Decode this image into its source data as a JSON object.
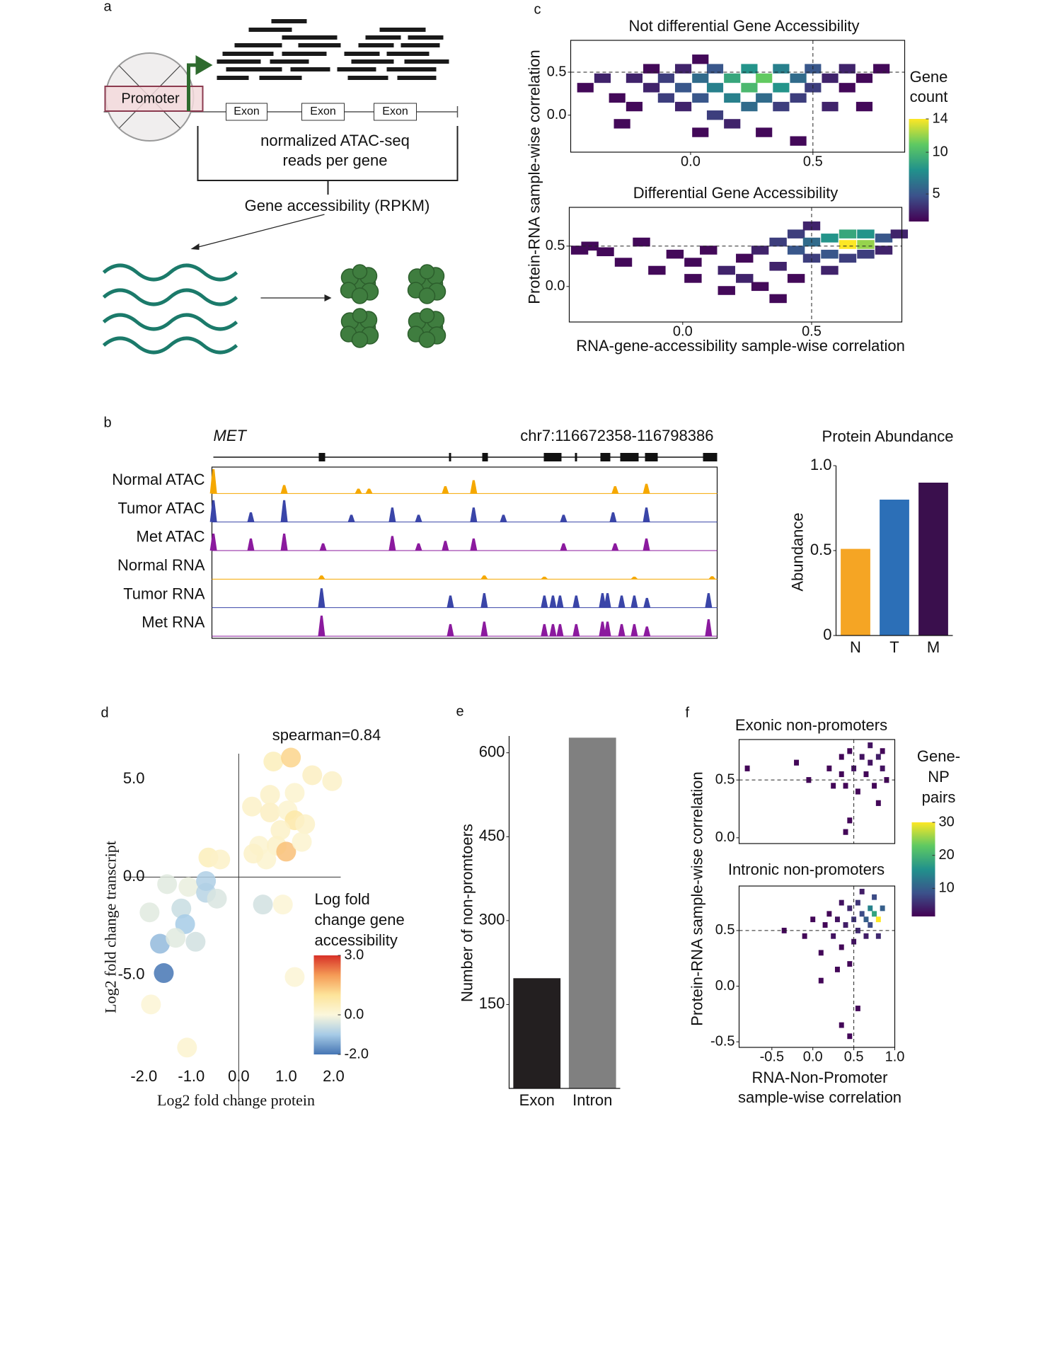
{
  "panel_labels": [
    "a",
    "b",
    "c",
    "d",
    "e",
    "f"
  ],
  "diagram_a": {
    "promoter": "Promoter",
    "exons": [
      "Exon",
      "Exon",
      "Exon"
    ],
    "reads_label": [
      "normalized ATAC-seq",
      "reads per gene"
    ],
    "accessibility": "Gene accessibility (RPKM)"
  },
  "chart_data": [
    {
      "type": "heatmap",
      "title": "Not differential Gene Accessibility",
      "y_label": "Protein-RNA sample-wise correlation",
      "colorbar_title": [
        "Gene",
        "count"
      ],
      "x": [
        -0.43,
        -0.36,
        -0.3,
        -0.23,
        -0.23,
        -0.16,
        -0.16,
        -0.1,
        -0.1,
        -0.03,
        -0.03,
        -0.03,
        0.04,
        0.04,
        0.04,
        0.1,
        0.1,
        0.1,
        0.17,
        0.17,
        0.17,
        0.24,
        0.24,
        0.24,
        0.3,
        0.3,
        0.3,
        0.37,
        0.37,
        0.37,
        0.44,
        0.44,
        0.44,
        0.5,
        0.5,
        0.57,
        0.57,
        0.64,
        0.64,
        0.71,
        0.71,
        0.78,
        -0.28,
        0.04
      ],
      "y": [
        0.32,
        0.43,
        0.2,
        0.1,
        0.43,
        0.32,
        0.54,
        0.2,
        0.43,
        0.54,
        0.32,
        0.1,
        0.43,
        0.2,
        0.65,
        0.32,
        0.54,
        0.0,
        0.43,
        0.2,
        -0.1,
        0.32,
        0.54,
        0.1,
        0.43,
        0.2,
        -0.2,
        0.54,
        0.32,
        0.1,
        0.43,
        0.2,
        -0.3,
        0.32,
        0.54,
        0.43,
        0.1,
        0.32,
        0.54,
        0.43,
        0.1,
        0.54,
        -0.1,
        -0.2
      ],
      "values": [
        2,
        3,
        2,
        2,
        3,
        3,
        2,
        4,
        4,
        3,
        5,
        3,
        6,
        5,
        2,
        7,
        5,
        4,
        9,
        7,
        3,
        10,
        8,
        6,
        11,
        6,
        2,
        7,
        8,
        4,
        6,
        4,
        2,
        4,
        5,
        3,
        3,
        2,
        3,
        2,
        2,
        2,
        2,
        2
      ],
      "bin_size": [
        0.067,
        0.11
      ],
      "xlim": [
        -0.49,
        0.875
      ],
      "ylim": [
        -0.43,
        0.87
      ],
      "xticks": [
        {
          "value": 0,
          "label": "0.0"
        },
        0.5
      ],
      "yticks": [
        {
          "value": 0,
          "label": "0.0"
        },
        0.5
      ],
      "ref_lines": {
        "x": 0.5,
        "y": 0.5
      },
      "clim": [
        1.7,
        14
      ],
      "cticks": [
        5,
        10,
        14
      ],
      "colorscale": [
        "#440154",
        "#3b528b",
        "#21918c",
        "#5ec962",
        "#fde725"
      ]
    },
    {
      "type": "heatmap",
      "title": "Differential Gene Accessibility",
      "x_label": "RNA-gene-accessibility sample-wise correlation",
      "x": [
        -0.36,
        -0.3,
        -0.23,
        -0.16,
        -0.1,
        -0.03,
        0.04,
        0.04,
        0.1,
        0.17,
        0.17,
        0.24,
        0.24,
        0.3,
        0.3,
        0.37,
        0.37,
        0.37,
        0.44,
        0.44,
        0.44,
        0.5,
        0.5,
        0.5,
        0.57,
        0.57,
        0.57,
        0.64,
        0.64,
        0.64,
        0.71,
        0.71,
        0.71,
        0.78,
        0.78,
        0.84,
        -0.4
      ],
      "y": [
        0.5,
        0.43,
        0.3,
        0.55,
        0.2,
        0.4,
        0.3,
        0.1,
        0.45,
        0.2,
        -0.05,
        0.35,
        0.1,
        0.45,
        0.0,
        0.55,
        0.25,
        -0.15,
        0.45,
        0.65,
        0.1,
        0.55,
        0.35,
        0.75,
        0.6,
        0.4,
        0.2,
        0.52,
        0.65,
        0.35,
        0.52,
        0.65,
        0.4,
        0.6,
        0.45,
        0.65,
        0.45
      ],
      "values": [
        2,
        2,
        2,
        2,
        2,
        2,
        2,
        2,
        2,
        3,
        2,
        2,
        3,
        3,
        2,
        4,
        3,
        2,
        5,
        4,
        2,
        6,
        4,
        3,
        8,
        5,
        3,
        14,
        9,
        4,
        12,
        8,
        4,
        5,
        3,
        3,
        2
      ],
      "bin_size": [
        0.067,
        0.11
      ],
      "xlim": [
        -0.44,
        0.85
      ],
      "ylim": [
        -0.44,
        0.98
      ],
      "xticks": [
        {
          "value": 0,
          "label": "0.0"
        },
        0.5
      ],
      "yticks": [
        {
          "value": 0,
          "label": "0.0"
        },
        0.5
      ],
      "ref_lines": {
        "x": 0.5,
        "y": 0.5
      },
      "clim": [
        1.7,
        14
      ],
      "colorscale": [
        "#440154",
        "#3b528b",
        "#21918c",
        "#5ec962",
        "#fde725"
      ]
    },
    {
      "type": "tracks",
      "gene": "MET",
      "region": "chr7:116672358-116798386",
      "tracks": [
        {
          "name": "Normal ATAC",
          "color": "#f5a800",
          "peaks": [
            [
              0.003,
              1.0
            ],
            [
              0.143,
              0.35
            ],
            [
              0.29,
              0.2
            ],
            [
              0.311,
              0.2
            ],
            [
              0.462,
              0.3
            ],
            [
              0.518,
              0.55
            ],
            [
              0.798,
              0.3
            ],
            [
              0.86,
              0.4
            ]
          ]
        },
        {
          "name": "Tumor ATAC",
          "color": "#3a45a8",
          "peaks": [
            [
              0.003,
              0.9
            ],
            [
              0.077,
              0.4
            ],
            [
              0.143,
              0.9
            ],
            [
              0.276,
              0.3
            ],
            [
              0.357,
              0.6
            ],
            [
              0.409,
              0.3
            ],
            [
              0.518,
              0.6
            ],
            [
              0.577,
              0.3
            ],
            [
              0.696,
              0.3
            ],
            [
              0.794,
              0.4
            ],
            [
              0.86,
              0.6
            ]
          ]
        },
        {
          "name": "Met ATAC",
          "color": "#8b1a9e",
          "peaks": [
            [
              0.003,
              0.7
            ],
            [
              0.077,
              0.5
            ],
            [
              0.143,
              0.7
            ],
            [
              0.22,
              0.3
            ],
            [
              0.357,
              0.6
            ],
            [
              0.409,
              0.3
            ],
            [
              0.462,
              0.4
            ],
            [
              0.518,
              0.5
            ],
            [
              0.696,
              0.3
            ],
            [
              0.798,
              0.3
            ],
            [
              0.86,
              0.5
            ]
          ]
        },
        {
          "name": "Normal RNA",
          "color": "#f5a800",
          "peaks": [
            [
              0.217,
              0.15
            ],
            [
              0.539,
              0.15
            ],
            [
              0.658,
              0.1
            ],
            [
              0.836,
              0.1
            ],
            [
              0.99,
              0.12
            ]
          ]
        },
        {
          "name": "Tumor RNA",
          "color": "#3a45a8",
          "peaks": [
            [
              0.217,
              0.8
            ],
            [
              0.472,
              0.5
            ],
            [
              0.539,
              0.6
            ],
            [
              0.658,
              0.5
            ],
            [
              0.675,
              0.5
            ],
            [
              0.689,
              0.5
            ],
            [
              0.721,
              0.5
            ],
            [
              0.773,
              0.6
            ],
            [
              0.783,
              0.6
            ],
            [
              0.811,
              0.5
            ],
            [
              0.836,
              0.5
            ],
            [
              0.861,
              0.4
            ],
            [
              0.983,
              0.6
            ]
          ]
        },
        {
          "name": "Met RNA",
          "color": "#8b1a9e",
          "peaks": [
            [
              0.217,
              0.85
            ],
            [
              0.472,
              0.5
            ],
            [
              0.539,
              0.6
            ],
            [
              0.658,
              0.5
            ],
            [
              0.675,
              0.5
            ],
            [
              0.689,
              0.5
            ],
            [
              0.721,
              0.5
            ],
            [
              0.773,
              0.6
            ],
            [
              0.783,
              0.6
            ],
            [
              0.811,
              0.5
            ],
            [
              0.836,
              0.5
            ],
            [
              0.861,
              0.4
            ],
            [
              0.983,
              0.7
            ]
          ]
        }
      ]
    },
    {
      "type": "bar",
      "title": "Protein Abundance",
      "y_label": "Abundance",
      "categories": [
        "N",
        "T",
        "M"
      ],
      "values": [
        0.51,
        0.8,
        0.9
      ],
      "colors": [
        "#f5a524",
        "#2c6fb7",
        "#3a0f4d"
      ],
      "ylim": [
        0,
        1
      ],
      "yticks": [
        0,
        0.5,
        {
          "value": 1,
          "label": "1.0"
        }
      ]
    },
    {
      "type": "scatter",
      "annotation": "spearman=0.84",
      "x_label": "Log2 fold change protein",
      "y_label": "Log2 fold change transcript",
      "colorbar_title": [
        "Log fold",
        "change gene",
        "accessibility"
      ],
      "x": [
        0.73,
        1.1,
        1.55,
        1.97,
        0.28,
        0.66,
        1.03,
        1.18,
        0.88,
        1.4,
        0.43,
        0.8,
        1.0,
        0.58,
        0.31,
        1.33,
        -0.64,
        -0.39,
        0.66,
        1.18,
        -1.51,
        -1.06,
        -0.69,
        -0.46,
        -1.88,
        -1.21,
        -1.66,
        -1.13,
        -1.33,
        -0.91,
        -0.69,
        -1.58,
        -1.85,
        -1.09,
        0.51,
        0.93,
        1.18
      ],
      "y": [
        5.9,
        6.1,
        5.2,
        4.9,
        3.6,
        3.3,
        3.4,
        2.9,
        2.4,
        2.7,
        1.6,
        1.6,
        1.3,
        0.9,
        1.2,
        1.8,
        1.0,
        0.9,
        4.2,
        4.3,
        -0.36,
        -0.5,
        -0.8,
        -1.1,
        -1.8,
        -1.6,
        -3.4,
        -2.4,
        -3.1,
        -3.3,
        -0.2,
        -4.9,
        -6.5,
        -8.7,
        -1.4,
        -1.4,
        -5.1
      ],
      "color_values": [
        0.5,
        1.2,
        0.4,
        0.3,
        0.3,
        0.4,
        0.2,
        0.8,
        0.3,
        0.3,
        0.2,
        0.3,
        1.5,
        0.2,
        0.3,
        0.2,
        0.5,
        0.3,
        0.3,
        0.2,
        -0.3,
        -0.2,
        -0.8,
        -0.4,
        -0.3,
        -0.6,
        -1.2,
        -1.0,
        -0.3,
        -0.5,
        -0.9,
        -2.0,
        0.1,
        0.2,
        -0.5,
        0.1,
        0.1
      ],
      "xlim": [
        -2.4,
        2.15
      ],
      "ylim": [
        -11.4,
        6.3
      ],
      "xticks": [
        {
          "value": -2,
          "label": "-2.0"
        },
        {
          "value": -1,
          "label": "-1.0"
        },
        {
          "value": 0,
          "label": "0.0"
        },
        {
          "value": 1,
          "label": "1.0"
        },
        {
          "value": 2,
          "label": "2.0"
        }
      ],
      "yticks": [
        {
          "value": 5,
          "label": "5.0"
        },
        {
          "value": 0,
          "label": "0.0"
        },
        {
          "value": -5,
          "label": "-5.0"
        }
      ],
      "clim": [
        -2,
        3
      ],
      "cticks": [
        {
          "value": 3,
          "label": "3.0"
        },
        {
          "value": 0,
          "label": "0.0"
        },
        {
          "value": -2,
          "label": "-2.0"
        }
      ],
      "colorscale": [
        "#4575b4",
        "#a6cbe6",
        "#fbf7dc",
        "#fde49a",
        "#f59b56",
        "#d73027"
      ]
    },
    {
      "type": "bar",
      "y_label": "Number of non-promtoers",
      "categories": [
        "Exon",
        "Intron"
      ],
      "values": [
        197,
        627
      ],
      "colors": [
        "#231f20",
        "#808080"
      ],
      "ylim": [
        0,
        630
      ],
      "yticks": [
        150,
        300,
        450,
        600
      ]
    },
    {
      "type": "heatmap",
      "title": "Exonic non-promoters",
      "y_label": "Protein-RNA sample-wise correlation",
      "colorbar_title": [
        "Gene-",
        "NP",
        "pairs"
      ],
      "x": [
        -0.8,
        -0.2,
        0.2,
        0.25,
        0.35,
        0.35,
        0.4,
        0.45,
        0.5,
        0.55,
        0.6,
        0.65,
        0.7,
        0.7,
        0.75,
        0.8,
        0.8,
        0.85,
        0.85,
        0.9,
        0.45,
        0.4,
        -0.05
      ],
      "y": [
        0.6,
        0.65,
        0.6,
        0.45,
        0.7,
        0.55,
        0.45,
        0.75,
        0.6,
        0.4,
        0.7,
        0.55,
        0.8,
        0.65,
        0.45,
        0.7,
        0.3,
        0.6,
        0.75,
        0.5,
        0.15,
        0.05,
        0.5
      ],
      "values": [
        2,
        2,
        2,
        2,
        2,
        2,
        2,
        2,
        3,
        2,
        3,
        2,
        3,
        3,
        2,
        4,
        2,
        3,
        2,
        2,
        2,
        2,
        2
      ],
      "bin_size": [
        0.06,
        0.05
      ],
      "xlim": [
        -0.9,
        1.0
      ],
      "ylim": [
        -0.05,
        0.85
      ],
      "yticks": [
        {
          "value": 0,
          "label": "0.0"
        },
        0.5
      ],
      "ref_lines": {
        "x": 0.5,
        "y": 0.5
      },
      "clim": [
        1.5,
        30
      ],
      "cticks": [
        10,
        20,
        30
      ],
      "colorscale": [
        "#440154",
        "#3b528b",
        "#21918c",
        "#5ec962",
        "#fde725"
      ]
    },
    {
      "type": "heatmap",
      "title": "Intronic non-promoters",
      "x_label": [
        "RNA-Non-Promoter",
        "sample-wise correlation"
      ],
      "x": [
        -0.35,
        -0.1,
        0.0,
        0.1,
        0.15,
        0.2,
        0.25,
        0.3,
        0.35,
        0.35,
        0.4,
        0.45,
        0.45,
        0.5,
        0.5,
        0.55,
        0.55,
        0.6,
        0.6,
        0.65,
        0.65,
        0.7,
        0.7,
        0.75,
        0.75,
        0.8,
        0.8,
        0.85,
        0.35,
        0.45,
        0.55,
        0.1,
        0.3
      ],
      "y": [
        0.5,
        0.45,
        0.6,
        0.3,
        0.55,
        0.65,
        0.45,
        0.6,
        0.75,
        0.35,
        0.55,
        0.7,
        0.2,
        0.6,
        0.4,
        0.75,
        0.5,
        0.65,
        0.85,
        0.6,
        0.45,
        0.7,
        0.55,
        0.65,
        0.8,
        0.6,
        0.45,
        0.7,
        -0.35,
        -0.45,
        -0.2,
        0.05,
        0.15
      ],
      "values": [
        2,
        2,
        2,
        2,
        2,
        2,
        3,
        3,
        3,
        2,
        4,
        5,
        2,
        6,
        3,
        6,
        5,
        8,
        4,
        10,
        4,
        14,
        8,
        18,
        8,
        30,
        5,
        10,
        2,
        2,
        2,
        2,
        2
      ],
      "bin_size": [
        0.06,
        0.05
      ],
      "xlim": [
        -0.9,
        1.0
      ],
      "ylim": [
        -0.55,
        0.9
      ],
      "xticks": [
        -0.5,
        {
          "value": 0,
          "label": "0.0"
        },
        0.5,
        {
          "value": 1,
          "label": "1.0"
        }
      ],
      "yticks": [
        -0.5,
        {
          "value": 0,
          "label": "0.0"
        },
        0.5
      ],
      "ref_lines": {
        "x": 0.5,
        "y": 0.5
      },
      "clim": [
        1.5,
        30
      ],
      "colorscale": [
        "#440154",
        "#3b528b",
        "#21918c",
        "#5ec962",
        "#fde725"
      ]
    }
  ]
}
